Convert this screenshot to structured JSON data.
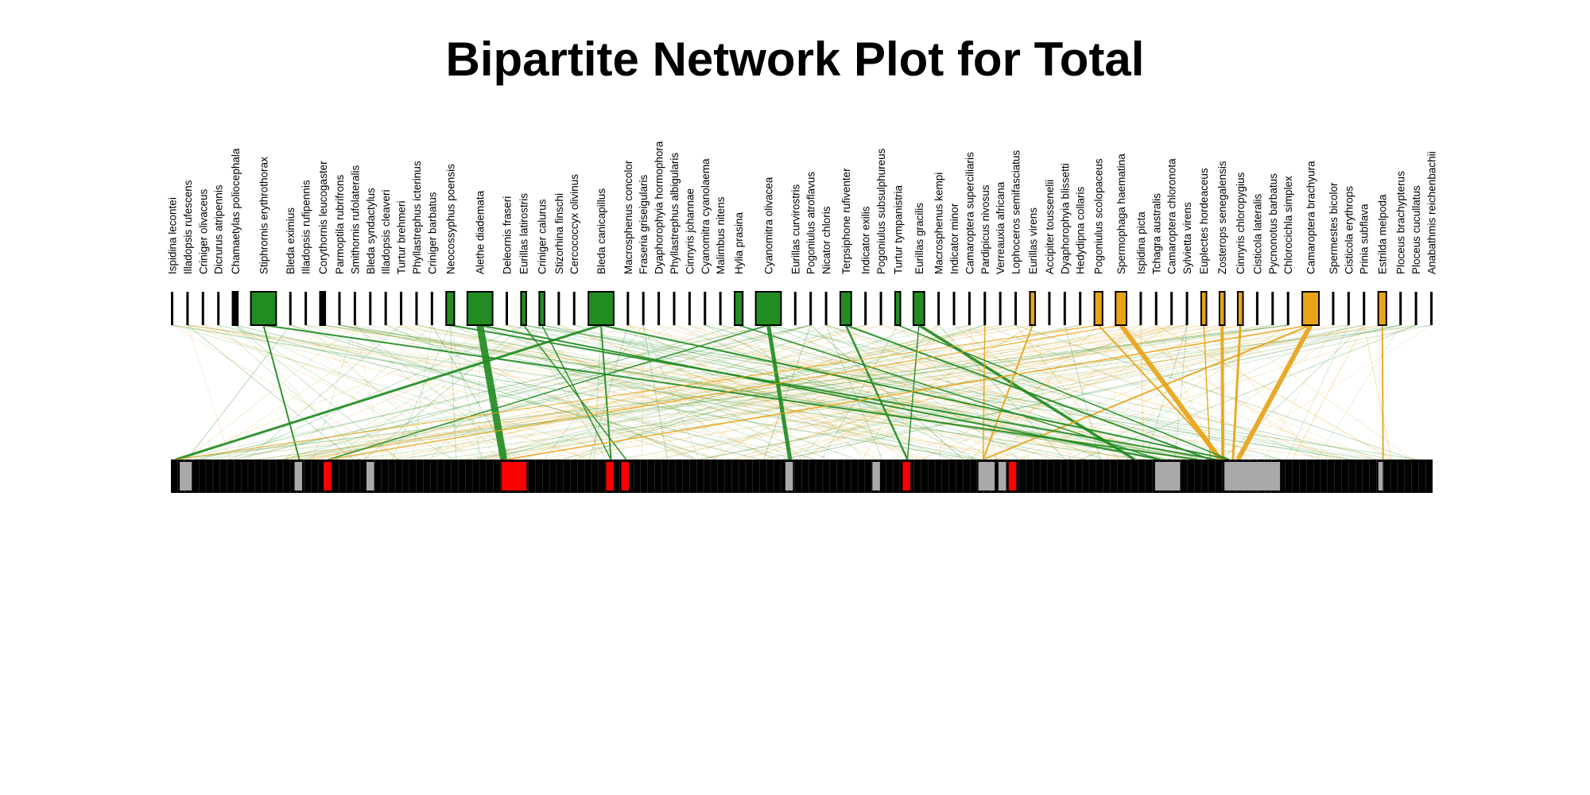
{
  "title": "Bipartite Network Plot for Total",
  "colors": {
    "green": "#228B22",
    "orange": "#E8A317",
    "lower_black": "#000000",
    "lower_gray": "#A9A9A9",
    "lower_red": "#FF0000"
  },
  "upper_nodes": [
    {
      "name": "Ispidina lecontei",
      "weight": 0,
      "group": "none"
    },
    {
      "name": "Illadopsis rufescens",
      "weight": 0,
      "group": "none"
    },
    {
      "name": "Criniger olivaceus",
      "weight": 0,
      "group": "none"
    },
    {
      "name": "Dicrurus atripennis",
      "weight": 0,
      "group": "none"
    },
    {
      "name": "Chamaetylas poliocephala",
      "weight": 1,
      "group": "none"
    },
    {
      "name": "Stiphrornis erythrothorax",
      "weight": 8,
      "group": "green"
    },
    {
      "name": "Bleda eximius",
      "weight": 0,
      "group": "none"
    },
    {
      "name": "Illadopsis rufipennis",
      "weight": 0,
      "group": "none"
    },
    {
      "name": "Corythornis leucogaster",
      "weight": 1,
      "group": "none"
    },
    {
      "name": "Parmoptila rubrifrons",
      "weight": 0,
      "group": "none"
    },
    {
      "name": "Smithornis rufolateralis",
      "weight": 0,
      "group": "none"
    },
    {
      "name": "Bleda syndactylus",
      "weight": 0,
      "group": "none"
    },
    {
      "name": "Illadopsis cleaveri",
      "weight": 0,
      "group": "none"
    },
    {
      "name": "Turtur brehmeri",
      "weight": 0,
      "group": "none"
    },
    {
      "name": "Phyllastrephus icterinus",
      "weight": 0,
      "group": "none"
    },
    {
      "name": "Criniger barbatus",
      "weight": 0,
      "group": "none"
    },
    {
      "name": "Neocossyphus poensis",
      "weight": 2,
      "group": "green"
    },
    {
      "name": "Alethe diademata",
      "weight": 8,
      "group": "green"
    },
    {
      "name": "Deleornis fraseri",
      "weight": 0,
      "group": "none"
    },
    {
      "name": "Eurillas latirostris",
      "weight": 1,
      "group": "green"
    },
    {
      "name": "Criniger calurus",
      "weight": 1,
      "group": "green"
    },
    {
      "name": "Stizorhina finschi",
      "weight": 0,
      "group": "none"
    },
    {
      "name": "Cercococcyx olivinus",
      "weight": 0,
      "group": "none"
    },
    {
      "name": "Bleda canicapillus",
      "weight": 8,
      "group": "green"
    },
    {
      "name": "Macrosphenus concolor",
      "weight": 0,
      "group": "none"
    },
    {
      "name": "Fraseria griseigularis",
      "weight": 0,
      "group": "none"
    },
    {
      "name": "Dyaphorophyia hormophora",
      "weight": 0,
      "group": "none"
    },
    {
      "name": "Phyllastrephus albigularis",
      "weight": 0,
      "group": "none"
    },
    {
      "name": "Cinnyris johannae",
      "weight": 0,
      "group": "none"
    },
    {
      "name": "Cyanomitra cyanolaema",
      "weight": 0,
      "group": "none"
    },
    {
      "name": "Malimbus nitens",
      "weight": 0,
      "group": "none"
    },
    {
      "name": "Hylia prasina",
      "weight": 2,
      "group": "green"
    },
    {
      "name": "Cyanomitra olivacea",
      "weight": 8,
      "group": "green"
    },
    {
      "name": "Eurillas curvirostris",
      "weight": 0,
      "group": "none"
    },
    {
      "name": "Pogoniulus atroflavus",
      "weight": 0,
      "group": "none"
    },
    {
      "name": "Nicator chloris",
      "weight": 0,
      "group": "none"
    },
    {
      "name": "Terpsiphone rufiventer",
      "weight": 3,
      "group": "green"
    },
    {
      "name": "Indicator exilis",
      "weight": 0,
      "group": "none"
    },
    {
      "name": "Pogoniulus subsulphureus",
      "weight": 0,
      "group": "none"
    },
    {
      "name": "Turtur tympanistria",
      "weight": 1,
      "group": "green"
    },
    {
      "name": "Eurillas gracilis",
      "weight": 3,
      "group": "green"
    },
    {
      "name": "Macrosphenus kempi",
      "weight": 0,
      "group": "none"
    },
    {
      "name": "Indicator minor",
      "weight": 0,
      "group": "none"
    },
    {
      "name": "Camaroptera superciliaris",
      "weight": 0,
      "group": "none"
    },
    {
      "name": "Pardipicus nivosus",
      "weight": 0,
      "group": "none"
    },
    {
      "name": "Verreauxia africana",
      "weight": 0,
      "group": "none"
    },
    {
      "name": "Lophoceros semifasciatus",
      "weight": 0,
      "group": "none"
    },
    {
      "name": "Eurillas virens",
      "weight": 1,
      "group": "orange"
    },
    {
      "name": "Accipiter toussenelii",
      "weight": 0,
      "group": "none"
    },
    {
      "name": "Dyaphorophyia blissetti",
      "weight": 0,
      "group": "none"
    },
    {
      "name": "Hedydipna collaris",
      "weight": 0,
      "group": "none"
    },
    {
      "name": "Pogoniulus scolopaceus",
      "weight": 2,
      "group": "orange"
    },
    {
      "name": "Spermophaga haematina",
      "weight": 3,
      "group": "orange"
    },
    {
      "name": "Ispidina picta",
      "weight": 0,
      "group": "none"
    },
    {
      "name": "Tchagra australis",
      "weight": 0,
      "group": "none"
    },
    {
      "name": "Camaroptera chloronota",
      "weight": 0,
      "group": "none"
    },
    {
      "name": "Sylvietta virens",
      "weight": 0,
      "group": "none"
    },
    {
      "name": "Euplectes hordeaceus",
      "weight": 1,
      "group": "orange"
    },
    {
      "name": "Zosterops senegalensis",
      "weight": 1,
      "group": "orange"
    },
    {
      "name": "Cinnyris chloropygius",
      "weight": 1,
      "group": "orange"
    },
    {
      "name": "Cisticola lateralis",
      "weight": 0,
      "group": "none"
    },
    {
      "name": "Pycnonotus barbatus",
      "weight": 0,
      "group": "none"
    },
    {
      "name": "Chlorocichla simplex",
      "weight": 0,
      "group": "none"
    },
    {
      "name": "Camaroptera brachyura",
      "weight": 5,
      "group": "orange"
    },
    {
      "name": "Spermestes bicolor",
      "weight": 0,
      "group": "none"
    },
    {
      "name": "Cisticola erythrops",
      "weight": 0,
      "group": "none"
    },
    {
      "name": "Prinia subflava",
      "weight": 0,
      "group": "none"
    },
    {
      "name": "Estrilda melpoda",
      "weight": 2,
      "group": "orange"
    },
    {
      "name": "Ploceus brachypterus",
      "weight": 0,
      "group": "none"
    },
    {
      "name": "Ploceus cucullatus",
      "weight": 0,
      "group": "none"
    },
    {
      "name": "Anabathmis reichenbachii",
      "weight": 0,
      "group": "none"
    }
  ],
  "lower_bar": {
    "count": 180,
    "highlights": [
      {
        "pos": 0.007,
        "weight": 2,
        "color": "gray"
      },
      {
        "pos": 0.098,
        "weight": 1,
        "color": "gray"
      },
      {
        "pos": 0.121,
        "weight": 1,
        "color": "red"
      },
      {
        "pos": 0.155,
        "weight": 1,
        "color": "gray"
      },
      {
        "pos": 0.262,
        "weight": 5,
        "color": "red"
      },
      {
        "pos": 0.345,
        "weight": 1,
        "color": "red"
      },
      {
        "pos": 0.357,
        "weight": 1,
        "color": "red"
      },
      {
        "pos": 0.487,
        "weight": 1,
        "color": "gray"
      },
      {
        "pos": 0.556,
        "weight": 1,
        "color": "gray"
      },
      {
        "pos": 0.58,
        "weight": 1,
        "color": "red"
      },
      {
        "pos": 0.64,
        "weight": 3,
        "color": "gray"
      },
      {
        "pos": 0.656,
        "weight": 1,
        "color": "gray"
      },
      {
        "pos": 0.664,
        "weight": 1,
        "color": "red"
      },
      {
        "pos": 0.78,
        "weight": 5,
        "color": "gray"
      },
      {
        "pos": 0.835,
        "weight": 12,
        "color": "gray"
      },
      {
        "pos": 0.957,
        "weight": 0.3,
        "color": "gray"
      }
    ]
  },
  "links": [
    {
      "from": 17,
      "to": 0.26,
      "weight": 9,
      "color": "green"
    },
    {
      "from": 32,
      "to": 0.487,
      "weight": 5,
      "color": "green"
    },
    {
      "from": 23,
      "to": 0.0,
      "weight": 3,
      "color": "green"
    },
    {
      "from": 40,
      "to": 0.76,
      "weight": 3.5,
      "color": "green"
    },
    {
      "from": 52,
      "to": 0.828,
      "weight": 6,
      "color": "orange"
    },
    {
      "from": 58,
      "to": 0.83,
      "weight": 4,
      "color": "orange"
    },
    {
      "from": 59,
      "to": 0.838,
      "weight": 3,
      "color": "orange"
    },
    {
      "from": 63,
      "to": 0.842,
      "weight": 6,
      "color": "orange"
    },
    {
      "from": 51,
      "to": 0.83,
      "weight": 2,
      "color": "orange"
    },
    {
      "from": 47,
      "to": 0.64,
      "weight": 2,
      "color": "orange"
    },
    {
      "from": 44,
      "to": 0.64,
      "weight": 1.5,
      "color": "orange"
    },
    {
      "from": 67,
      "to": 0.957,
      "weight": 2,
      "color": "orange"
    },
    {
      "from": 63,
      "to": 0.64,
      "weight": 2,
      "color": "orange"
    },
    {
      "from": 57,
      "to": 0.82,
      "weight": 1.5,
      "color": "orange"
    },
    {
      "from": 36,
      "to": 0.58,
      "weight": 2.5,
      "color": "green"
    },
    {
      "from": 36,
      "to": 0.82,
      "weight": 2,
      "color": "green"
    },
    {
      "from": 5,
      "to": 0.098,
      "weight": 2,
      "color": "green"
    },
    {
      "from": 5,
      "to": 0.81,
      "weight": 2,
      "color": "green"
    },
    {
      "from": 16,
      "to": 0.825,
      "weight": 2,
      "color": "green"
    },
    {
      "from": 17,
      "to": 0.78,
      "weight": 2,
      "color": "green"
    },
    {
      "from": 23,
      "to": 0.345,
      "weight": 2,
      "color": "green"
    },
    {
      "from": 23,
      "to": 0.835,
      "weight": 2,
      "color": "green"
    },
    {
      "from": 19,
      "to": 0.357,
      "weight": 1.5,
      "color": "green"
    },
    {
      "from": 20,
      "to": 0.345,
      "weight": 1.5,
      "color": "green"
    },
    {
      "from": 31,
      "to": 0.78,
      "weight": 1.5,
      "color": "green"
    },
    {
      "from": 39,
      "to": 0.835,
      "weight": 1.5,
      "color": "green"
    },
    {
      "from": 32,
      "to": 0.121,
      "weight": 1.5,
      "color": "green"
    },
    {
      "from": 40,
      "to": 0.58,
      "weight": 1.5,
      "color": "green"
    },
    {
      "from": 63,
      "to": 0.262,
      "weight": 1.5,
      "color": "orange"
    },
    {
      "from": 52,
      "to": 0.121,
      "weight": 1.2,
      "color": "orange"
    },
    {
      "from": 51,
      "to": 0.0,
      "weight": 1,
      "color": "orange"
    }
  ]
}
